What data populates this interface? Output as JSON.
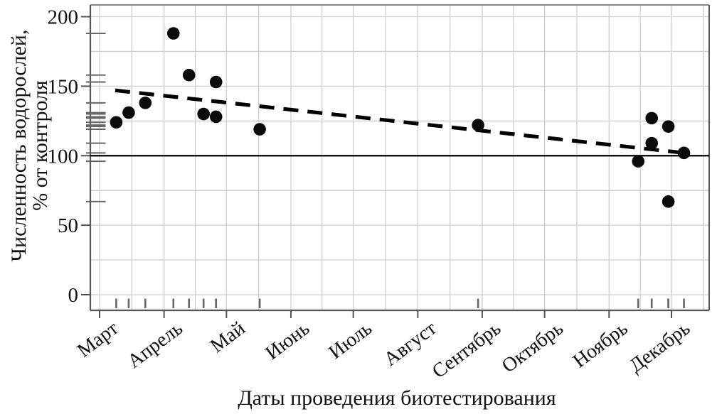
{
  "chart_data": {
    "type": "scatter",
    "title": "",
    "xlabel": "Даты проведения биотестирования",
    "ylabel_lines": [
      "Численность водорослей,",
      "% от контроля"
    ],
    "x_tick_labels": [
      "Март",
      "Апрель",
      "Май",
      "Июнь",
      "Июль",
      "Август",
      "Сентябрь",
      "Октябрь",
      "Ноябрь",
      "Декабрь"
    ],
    "month_start_days": [
      0,
      31,
      61,
      92,
      122,
      153,
      184,
      214,
      245,
      275
    ],
    "y_ticks": [
      0,
      50,
      100,
      150,
      200
    ],
    "y_minor_grid_step": 25,
    "y_axis_range_shown": [
      0,
      200
    ],
    "grid": true,
    "legend": "none",
    "reference_line_pct": 100,
    "points": [
      {
        "approx_date": "9 марта",
        "day_from_mar1": 8,
        "pct": 124
      },
      {
        "approx_date": "15 марта",
        "day_from_mar1": 14,
        "pct": 131
      },
      {
        "approx_date": "23 марта",
        "day_from_mar1": 22,
        "pct": 138
      },
      {
        "approx_date": "5 апреля",
        "day_from_mar1": 35.5,
        "pct": 188
      },
      {
        "approx_date": "13 апреля",
        "day_from_mar1": 43,
        "pct": 158
      },
      {
        "approx_date": "20 апреля",
        "day_from_mar1": 50,
        "pct": 130
      },
      {
        "approx_date": "26 апреля",
        "day_from_mar1": 56,
        "pct": 153
      },
      {
        "approx_date": "26 апреля",
        "day_from_mar1": 56,
        "pct": 128
      },
      {
        "approx_date": "16 мая",
        "day_from_mar1": 77,
        "pct": 119
      },
      {
        "approx_date": "30 августа",
        "day_from_mar1": 182,
        "pct": 122
      },
      {
        "approx_date": "15 ноября",
        "day_from_mar1": 259,
        "pct": 96
      },
      {
        "approx_date": "21 ноября",
        "day_from_mar1": 265.5,
        "pct": 127
      },
      {
        "approx_date": "21 ноября",
        "day_from_mar1": 265.5,
        "pct": 109
      },
      {
        "approx_date": "30 ноября",
        "day_from_mar1": 273.5,
        "pct": 121
      },
      {
        "approx_date": "30 ноября",
        "day_from_mar1": 273.5,
        "pct": 67
      },
      {
        "approx_date": "7 декабря",
        "day_from_mar1": 281,
        "pct": 102
      }
    ],
    "trend_line": {
      "style": "dashed",
      "start": {
        "day_from_mar1": 7.5,
        "pct": 147
      },
      "end": {
        "day_from_mar1": 284,
        "pct": 101.5
      }
    },
    "rug_marks": true
  },
  "colors": {
    "background": "#ffffff",
    "point": "#0a0a0a",
    "trend_line": "#000000",
    "reference_line": "#000000",
    "gridline": "#cfcfcf",
    "panel_border": "#555555",
    "panel_border_top": "#8a8a8a",
    "tick": "#555555",
    "rug": "#666666",
    "text": "#111111"
  }
}
